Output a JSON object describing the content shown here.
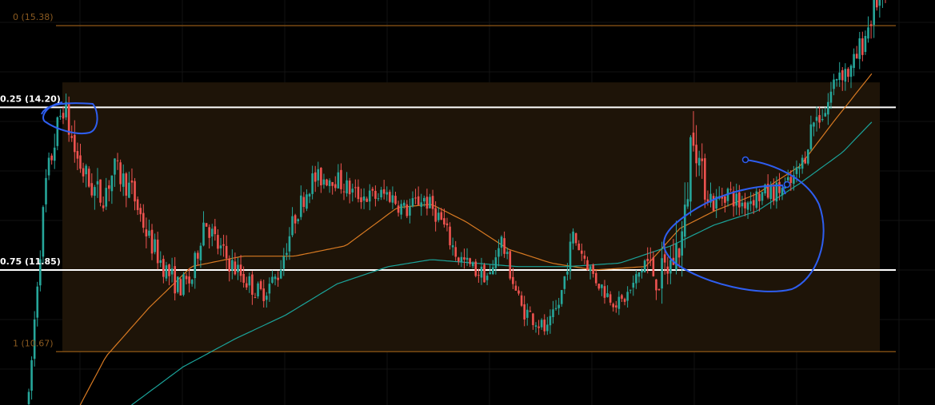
{
  "chart_data": {
    "type": "candlestick",
    "title": "",
    "grid": true,
    "y_range": [
      9.9,
      15.75
    ],
    "colors": {
      "background": "#000000",
      "up": "#26a69a",
      "down": "#ef5350",
      "fib_zone": "#1e1408",
      "fib_edge": "#7a4a12",
      "fib_label": "#8a5a20",
      "fib_inner": "#ffffff",
      "ma_fast": "#d87a22",
      "ma_slow": "#1ba39a",
      "drawing": "#2e5ef0"
    },
    "fib_levels": [
      {
        "level": "0",
        "price": 15.38,
        "label": "0 (15.38)",
        "style": "edge"
      },
      {
        "level": "0.25",
        "price": 14.2,
        "label": "0.25 (14.20)",
        "style": "inner"
      },
      {
        "level": "0.75",
        "price": 11.85,
        "label": "0.75 (11.85)",
        "style": "inner"
      },
      {
        "level": "1",
        "price": 10.67,
        "label": "1 (10.67)",
        "style": "edge"
      }
    ],
    "fib_zone_top": 14.56,
    "moving_averages": [
      {
        "color_key": "ma_fast",
        "anchors": [
          [
            0.06,
            9.9
          ],
          [
            0.09,
            10.6
          ],
          [
            0.14,
            11.3
          ],
          [
            0.19,
            11.9
          ],
          [
            0.25,
            12.05
          ],
          [
            0.31,
            12.05
          ],
          [
            0.37,
            12.2
          ],
          [
            0.43,
            12.75
          ],
          [
            0.47,
            12.8
          ],
          [
            0.51,
            12.55
          ],
          [
            0.56,
            12.15
          ],
          [
            0.61,
            11.95
          ],
          [
            0.66,
            11.85
          ],
          [
            0.72,
            11.9
          ],
          [
            0.76,
            12.45
          ],
          [
            0.8,
            12.7
          ],
          [
            0.85,
            12.95
          ],
          [
            0.9,
            13.35
          ],
          [
            0.94,
            14.0
          ],
          [
            0.985,
            14.7
          ]
        ]
      },
      {
        "color_key": "ma_slow",
        "anchors": [
          [
            0.12,
            9.9
          ],
          [
            0.18,
            10.45
          ],
          [
            0.24,
            10.85
          ],
          [
            0.3,
            11.2
          ],
          [
            0.36,
            11.65
          ],
          [
            0.42,
            11.9
          ],
          [
            0.47,
            12.0
          ],
          [
            0.52,
            11.95
          ],
          [
            0.57,
            11.9
          ],
          [
            0.63,
            11.9
          ],
          [
            0.69,
            11.95
          ],
          [
            0.75,
            12.2
          ],
          [
            0.8,
            12.5
          ],
          [
            0.85,
            12.7
          ],
          [
            0.9,
            13.1
          ],
          [
            0.95,
            13.55
          ],
          [
            0.985,
            14.0
          ]
        ]
      }
    ],
    "price_path": [
      [
        0.0,
        9.95
      ],
      [
        0.01,
        11.7
      ],
      [
        0.02,
        13.1
      ],
      [
        0.03,
        13.7
      ],
      [
        0.04,
        14.25
      ],
      [
        0.055,
        13.5
      ],
      [
        0.07,
        13.1
      ],
      [
        0.085,
        12.9
      ],
      [
        0.1,
        13.3
      ],
      [
        0.12,
        13.0
      ],
      [
        0.14,
        12.3
      ],
      [
        0.16,
        11.85
      ],
      [
        0.175,
        11.6
      ],
      [
        0.19,
        11.7
      ],
      [
        0.205,
        12.6
      ],
      [
        0.22,
        12.2
      ],
      [
        0.235,
        11.95
      ],
      [
        0.25,
        11.75
      ],
      [
        0.27,
        11.5
      ],
      [
        0.29,
        11.75
      ],
      [
        0.31,
        12.6
      ],
      [
        0.33,
        13.15
      ],
      [
        0.355,
        13.2
      ],
      [
        0.38,
        12.95
      ],
      [
        0.4,
        12.9
      ],
      [
        0.42,
        12.95
      ],
      [
        0.44,
        12.7
      ],
      [
        0.46,
        12.9
      ],
      [
        0.48,
        12.6
      ],
      [
        0.5,
        12.05
      ],
      [
        0.52,
        11.85
      ],
      [
        0.54,
        11.75
      ],
      [
        0.55,
        12.35
      ],
      [
        0.565,
        11.7
      ],
      [
        0.575,
        11.3
      ],
      [
        0.59,
        11.15
      ],
      [
        0.605,
        10.95
      ],
      [
        0.62,
        11.4
      ],
      [
        0.635,
        12.35
      ],
      [
        0.65,
        12.0
      ],
      [
        0.66,
        11.75
      ],
      [
        0.675,
        11.5
      ],
      [
        0.69,
        11.35
      ],
      [
        0.705,
        11.6
      ],
      [
        0.72,
        12.0
      ],
      [
        0.735,
        11.7
      ],
      [
        0.75,
        11.95
      ],
      [
        0.765,
        12.4
      ],
      [
        0.775,
        14.05
      ],
      [
        0.785,
        13.2
      ],
      [
        0.8,
        12.8
      ],
      [
        0.815,
        13.0
      ],
      [
        0.83,
        12.8
      ],
      [
        0.845,
        12.9
      ],
      [
        0.86,
        12.95
      ],
      [
        0.875,
        13.0
      ],
      [
        0.89,
        13.1
      ],
      [
        0.905,
        13.45
      ],
      [
        0.915,
        14.0
      ],
      [
        0.93,
        14.15
      ],
      [
        0.945,
        14.75
      ],
      [
        0.96,
        14.7
      ],
      [
        0.975,
        15.2
      ],
      [
        0.99,
        15.75
      ]
    ],
    "volatility": [
      [
        0.0,
        0.3
      ],
      [
        0.05,
        0.45
      ],
      [
        0.12,
        0.32
      ],
      [
        0.3,
        0.28
      ],
      [
        0.55,
        0.25
      ],
      [
        0.7,
        0.22
      ],
      [
        0.77,
        0.7
      ],
      [
        0.8,
        0.3
      ],
      [
        0.9,
        0.25
      ],
      [
        0.95,
        0.35
      ],
      [
        1.0,
        0.4
      ]
    ],
    "annotations": [
      {
        "kind": "circle",
        "note": "top of rally"
      },
      {
        "kind": "circle-with-arrow",
        "note": "breakout"
      }
    ]
  }
}
